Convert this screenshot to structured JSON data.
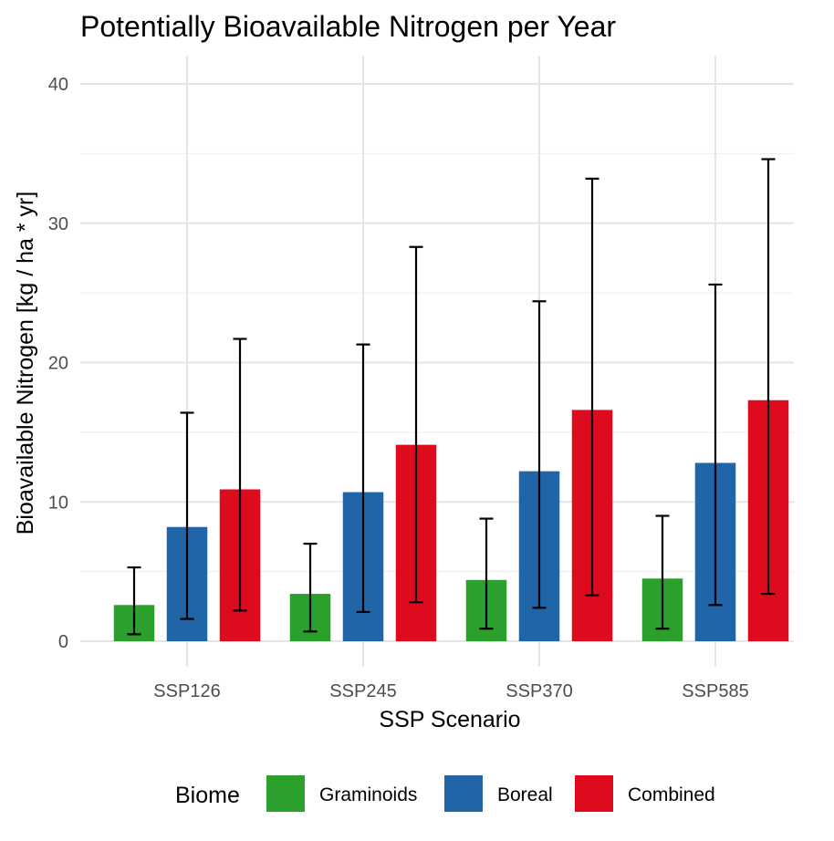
{
  "chart_data": {
    "type": "bar",
    "title": "Potentially Bioavailable Nitrogen per Year",
    "xlabel": "SSP Scenario",
    "ylabel": "Bioavailable Nitrogen [kg / ha * yr]",
    "ylim": [
      -1.8,
      42
    ],
    "yticks": [
      0,
      10,
      20,
      30,
      40
    ],
    "grid": true,
    "legend": {
      "title": "Biome",
      "placement": "bottom"
    },
    "categories": [
      "SSP126",
      "SSP245",
      "SSP370",
      "SSP585"
    ],
    "series": [
      {
        "name": "Graminoids",
        "color": "#2ca02c",
        "values": [
          2.6,
          3.4,
          4.4,
          4.5
        ],
        "error_low": [
          0.5,
          0.7,
          0.9,
          0.9
        ],
        "error_high": [
          5.3,
          7.0,
          8.8,
          9.0
        ]
      },
      {
        "name": "Boreal",
        "color": "#1f65a8",
        "values": [
          8.2,
          10.7,
          12.2,
          12.8
        ],
        "error_low": [
          1.6,
          2.1,
          2.4,
          2.6
        ],
        "error_high": [
          16.4,
          21.3,
          24.4,
          25.6
        ]
      },
      {
        "name": "Combined",
        "color": "#de0a1e",
        "values": [
          10.9,
          14.1,
          16.6,
          17.3
        ],
        "error_low": [
          2.2,
          2.8,
          3.3,
          3.4
        ],
        "error_high": [
          21.7,
          28.3,
          33.2,
          34.6
        ]
      }
    ]
  }
}
